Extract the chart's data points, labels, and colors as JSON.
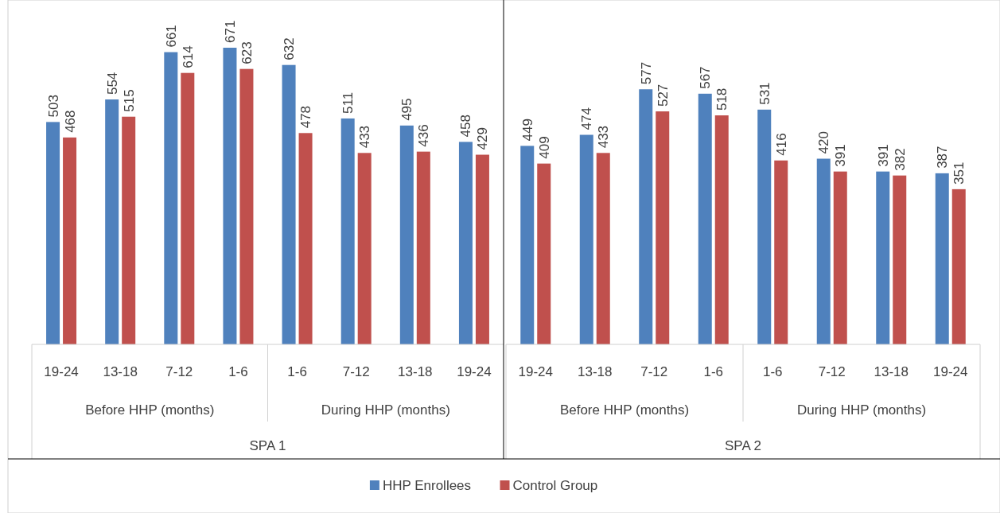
{
  "chart_data": [
    {
      "type": "bar",
      "xlabel": "SPA 1",
      "categories": [
        "19-24",
        "13-18",
        "7-12",
        "1-6",
        "1-6",
        "7-12",
        "13-18",
        "19-24"
      ],
      "annotations": [
        "Before HHP (months)",
        "During HHP (months)"
      ],
      "data_labels": true,
      "legend": "bottom",
      "series": [
        {
          "name": "HHP Enrollees",
          "color": "#4f81bd",
          "values": [
            503,
            554,
            661,
            671,
            632,
            511,
            495,
            458
          ]
        },
        {
          "name": "Control Group",
          "color": "#c0504d",
          "values": [
            468,
            515,
            614,
            623,
            478,
            433,
            436,
            429
          ]
        }
      ]
    },
    {
      "type": "bar",
      "xlabel": "SPA 2",
      "categories": [
        "19-24",
        "13-18",
        "7-12",
        "1-6",
        "1-6",
        "7-12",
        "13-18",
        "19-24"
      ],
      "annotations": [
        "Before HHP (months)",
        "During HHP (months)"
      ],
      "data_labels": true,
      "series": [
        {
          "color": "#4f81bd",
          "values": [
            449,
            474,
            577,
            567,
            531,
            420,
            391,
            387
          ]
        },
        {
          "color": "#c0504d",
          "values": [
            409,
            433,
            527,
            518,
            416,
            391,
            382,
            351
          ]
        }
      ]
    }
  ]
}
